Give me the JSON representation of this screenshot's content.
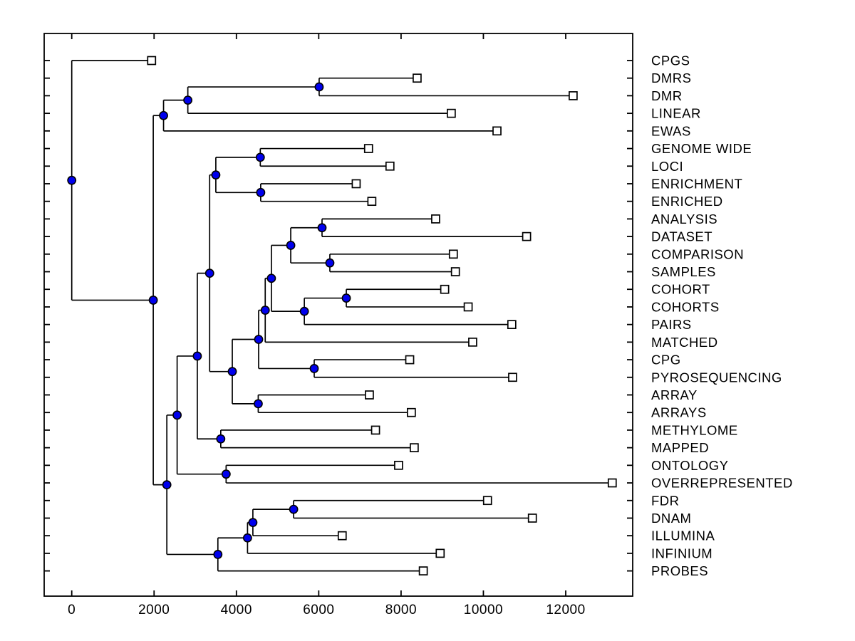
{
  "figure": {
    "background": "#ffffff",
    "line_color": "#000000",
    "axis_color": "#000000",
    "node_marker": {
      "shape": "circle",
      "fill": "#0000ee",
      "stroke": "#000000"
    },
    "leaf_marker": {
      "shape": "square",
      "fill": "#ffffff",
      "stroke": "#000000"
    }
  },
  "chart_data": {
    "type": "dendrogram",
    "orientation": "left-to-right",
    "title": "",
    "xlabel": "",
    "ylabel": "",
    "grid": false,
    "legend": null,
    "xticks": [
      0,
      2000,
      4000,
      6000,
      8000,
      10000,
      12000
    ],
    "xlim": [
      -670,
      13630
    ],
    "leaves": [
      {
        "label": "CPGS",
        "value": 1940
      },
      {
        "label": "DMRS",
        "value": 8390
      },
      {
        "label": "DMR",
        "value": 12180
      },
      {
        "label": "LINEAR",
        "value": 9220
      },
      {
        "label": "EWAS",
        "value": 10330
      },
      {
        "label": "GENOME WIDE",
        "value": 7210
      },
      {
        "label": "LOCI",
        "value": 7730
      },
      {
        "label": "ENRICHMENT",
        "value": 6910
      },
      {
        "label": "ENRICHED",
        "value": 7290
      },
      {
        "label": "ANALYSIS",
        "value": 8840
      },
      {
        "label": "DATASET",
        "value": 11050
      },
      {
        "label": "COMPARISON",
        "value": 9270
      },
      {
        "label": "SAMPLES",
        "value": 9320
      },
      {
        "label": "COHORT",
        "value": 9060
      },
      {
        "label": "COHORTS",
        "value": 9630
      },
      {
        "label": "PAIRS",
        "value": 10690
      },
      {
        "label": "MATCHED",
        "value": 9740
      },
      {
        "label": "CPG",
        "value": 8210
      },
      {
        "label": "PYROSEQUENCING",
        "value": 10710
      },
      {
        "label": "ARRAY",
        "value": 7230
      },
      {
        "label": "ARRAYS",
        "value": 8250
      },
      {
        "label": "METHYLOME",
        "value": 7380
      },
      {
        "label": "MAPPED",
        "value": 8320
      },
      {
        "label": "ONTOLOGY",
        "value": 7940
      },
      {
        "label": "OVERREPRESENTED",
        "value": 13130
      },
      {
        "label": "FDR",
        "value": 10100
      },
      {
        "label": "DNAM",
        "value": 11190
      },
      {
        "label": "ILLUMINA",
        "value": 6570
      },
      {
        "label": "INFINIUM",
        "value": 8950
      },
      {
        "label": "PROBES",
        "value": 8540
      }
    ],
    "merges": [
      {
        "id": "m_dmrs_dmr",
        "value": 6010,
        "children": [
          "DMRS",
          "DMR"
        ]
      },
      {
        "id": "m_dd_linear",
        "value": 2820,
        "children": [
          "m_dmrs_dmr",
          "LINEAR"
        ]
      },
      {
        "id": "m_top",
        "value": 2230,
        "children": [
          "m_dd_linear",
          "EWAS"
        ]
      },
      {
        "id": "m_gw_loci",
        "value": 4580,
        "children": [
          "GENOME WIDE",
          "LOCI"
        ]
      },
      {
        "id": "m_enriched",
        "value": 4590,
        "children": [
          "ENRICHMENT",
          "ENRICHED"
        ]
      },
      {
        "id": "m_gw_cluster",
        "value": 3500,
        "children": [
          "m_gw_loci",
          "m_enriched"
        ]
      },
      {
        "id": "m_an_dataset",
        "value": 6080,
        "children": [
          "ANALYSIS",
          "DATASET"
        ]
      },
      {
        "id": "m_comp_samples",
        "value": 6270,
        "children": [
          "COMPARISON",
          "SAMPLES"
        ]
      },
      {
        "id": "m_analysis_grp",
        "value": 5320,
        "children": [
          "m_an_dataset",
          "m_comp_samples"
        ]
      },
      {
        "id": "m_cohorts",
        "value": 6670,
        "children": [
          "COHORT",
          "COHORTS"
        ]
      },
      {
        "id": "m_cohorts_pairs",
        "value": 5650,
        "children": [
          "m_cohorts",
          "PAIRS"
        ]
      },
      {
        "id": "m_mid",
        "value": 4850,
        "children": [
          "m_analysis_grp",
          "m_cohorts_pairs"
        ]
      },
      {
        "id": "m_mid_matched",
        "value": 4700,
        "children": [
          "m_mid",
          "MATCHED"
        ]
      },
      {
        "id": "m_cpg_pyro",
        "value": 5890,
        "children": [
          "CPG",
          "PYROSEQUENCING"
        ]
      },
      {
        "id": "m_mid2",
        "value": 4540,
        "children": [
          "m_mid_matched",
          "m_cpg_pyro"
        ]
      },
      {
        "id": "m_arrays",
        "value": 4530,
        "children": [
          "ARRAY",
          "ARRAYS"
        ]
      },
      {
        "id": "m_mid3",
        "value": 3900,
        "children": [
          "m_mid2",
          "m_arrays"
        ]
      },
      {
        "id": "m_gw_mid",
        "value": 3350,
        "children": [
          "m_gw_cluster",
          "m_mid3"
        ]
      },
      {
        "id": "m_meth_mapped",
        "value": 3620,
        "children": [
          "METHYLOME",
          "MAPPED"
        ]
      },
      {
        "id": "m_r",
        "value": 3050,
        "children": [
          "m_gw_mid",
          "m_meth_mapped"
        ]
      },
      {
        "id": "m_ont_over",
        "value": 3750,
        "children": [
          "ONTOLOGY",
          "OVERREPRESENTED"
        ]
      },
      {
        "id": "m_s",
        "value": 2560,
        "children": [
          "m_r",
          "m_ont_over"
        ]
      },
      {
        "id": "m_fdr_dnam",
        "value": 5390,
        "children": [
          "FDR",
          "DNAM"
        ]
      },
      {
        "id": "m_b2",
        "value": 4400,
        "children": [
          "m_fdr_dnam",
          "ILLUMINA"
        ]
      },
      {
        "id": "m_b3",
        "value": 4270,
        "children": [
          "m_b2",
          "INFINIUM"
        ]
      },
      {
        "id": "m_b4",
        "value": 3550,
        "children": [
          "m_b3",
          "PROBES"
        ]
      },
      {
        "id": "m_t",
        "value": 2310,
        "children": [
          "m_s",
          "m_b4"
        ]
      },
      {
        "id": "m_m",
        "value": 1980,
        "children": [
          "m_top",
          "m_t"
        ]
      },
      {
        "id": "m_root",
        "value": 0,
        "children": [
          "CPGS",
          "m_m"
        ]
      }
    ]
  }
}
